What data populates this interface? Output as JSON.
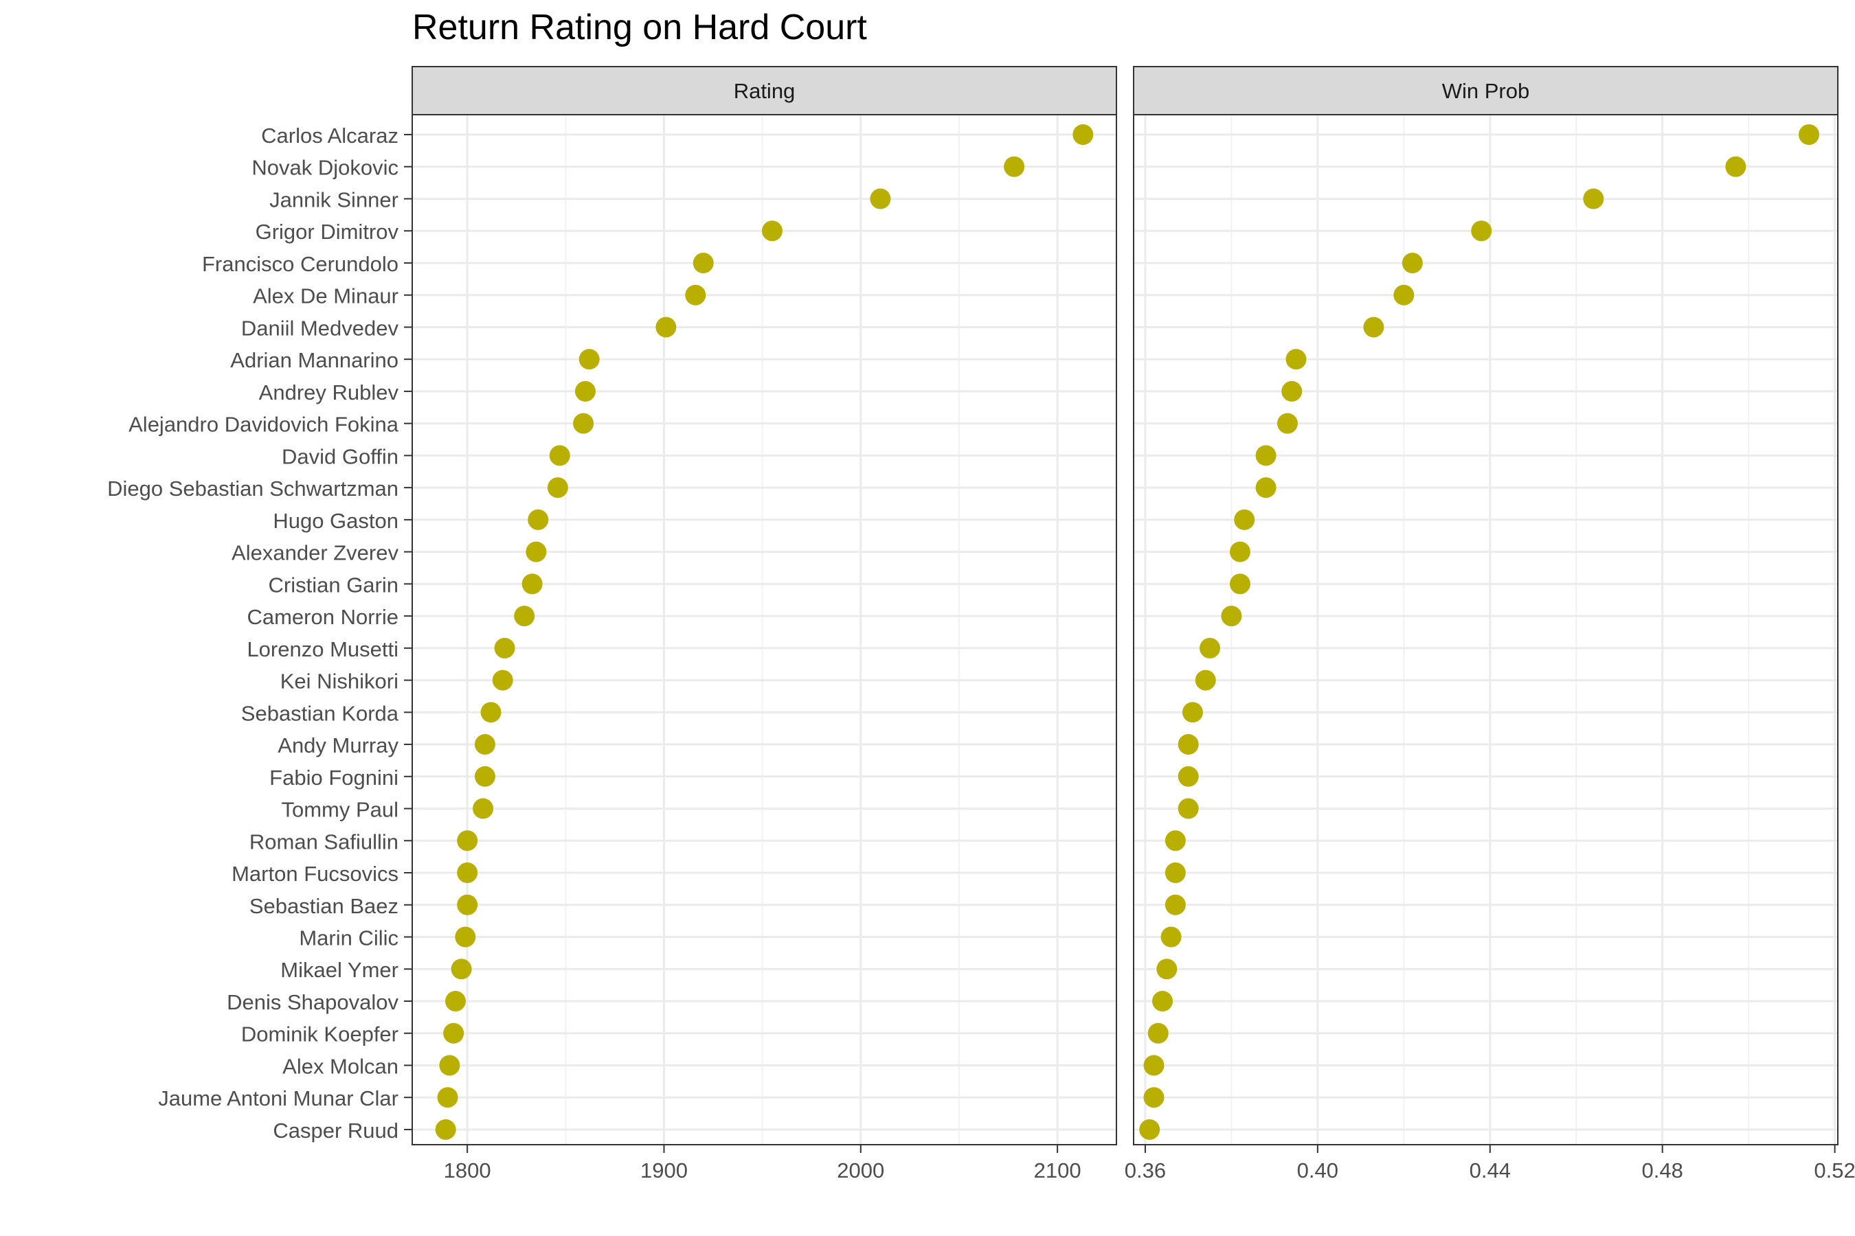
{
  "chart_data": {
    "type": "scatter",
    "title": "Return Rating on Hard Court",
    "marker_color": "#B8AF00",
    "players": [
      "Carlos Alcaraz",
      "Novak Djokovic",
      "Jannik Sinner",
      "Grigor Dimitrov",
      "Francisco Cerundolo",
      "Alex De Minaur",
      "Daniil Medvedev",
      "Adrian Mannarino",
      "Andrey Rublev",
      "Alejandro Davidovich Fokina",
      "David Goffin",
      "Diego Sebastian Schwartzman",
      "Hugo Gaston",
      "Alexander Zverev",
      "Cristian Garin",
      "Cameron Norrie",
      "Lorenzo Musetti",
      "Kei Nishikori",
      "Sebastian Korda",
      "Andy Murray",
      "Fabio Fognini",
      "Tommy Paul",
      "Roman Safiullin",
      "Marton Fucsovics",
      "Sebastian Baez",
      "Marin Cilic",
      "Mikael Ymer",
      "Denis Shapovalov",
      "Dominik Koepfer",
      "Alex Molcan",
      "Jaume Antoni Munar Clar",
      "Casper Ruud"
    ],
    "panels": [
      {
        "strip": "Rating",
        "xlim": [
          1772,
          2130
        ],
        "ticks": [
          1800,
          1900,
          2000,
          2100
        ],
        "tick_labels": [
          "1800",
          "1900",
          "2000",
          "2100"
        ],
        "minor_ticks": [
          1850,
          1950,
          2050
        ],
        "values": [
          2113,
          2078,
          2010,
          1955,
          1920,
          1916,
          1901,
          1862,
          1860,
          1859,
          1847,
          1846,
          1836,
          1835,
          1833,
          1829,
          1819,
          1818,
          1812,
          1809,
          1809,
          1808,
          1800,
          1800,
          1800,
          1799,
          1797,
          1794,
          1793,
          1791,
          1790,
          1789
        ]
      },
      {
        "strip": "Win Prob",
        "xlim": [
          0.3573,
          0.5207
        ],
        "ticks": [
          0.36,
          0.4,
          0.44,
          0.48,
          0.52
        ],
        "tick_labels": [
          "0.36",
          "0.40",
          "0.44",
          "0.48",
          "0.52"
        ],
        "minor_ticks": [
          0.38,
          0.42,
          0.46,
          0.5
        ],
        "values": [
          0.514,
          0.497,
          0.464,
          0.438,
          0.422,
          0.42,
          0.413,
          0.395,
          0.394,
          0.393,
          0.388,
          0.388,
          0.383,
          0.382,
          0.382,
          0.38,
          0.375,
          0.374,
          0.371,
          0.37,
          0.37,
          0.37,
          0.367,
          0.367,
          0.367,
          0.366,
          0.365,
          0.364,
          0.363,
          0.362,
          0.362,
          0.361
        ]
      }
    ]
  }
}
